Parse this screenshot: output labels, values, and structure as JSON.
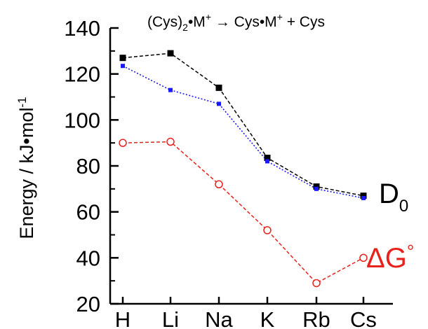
{
  "chart_data": {
    "type": "line",
    "title": "(Cys)2•M+ → Cys•M+ + Cys",
    "ylabel": "Energy / kJ•mol-1",
    "xlabel": "",
    "categories": [
      "H",
      "Li",
      "Na",
      "K",
      "Rb",
      "Cs"
    ],
    "ylim": [
      20,
      140
    ],
    "yticks": [
      20,
      40,
      60,
      80,
      100,
      120,
      140
    ],
    "series": [
      {
        "name": "D0",
        "color": "#000000",
        "marker": "filled-square",
        "line": "dashed",
        "values": [
          127,
          129,
          114,
          83.5,
          71,
          67
        ]
      },
      {
        "color": "#1a1aff",
        "marker": "small-filled-square",
        "line": "dotted",
        "values": [
          123.5,
          113,
          107,
          82,
          70,
          66
        ]
      },
      {
        "name": "ΔG°",
        "color": "#e8211d",
        "marker": "open-circle",
        "line": "dashed",
        "values": [
          90,
          90.5,
          72,
          52,
          29,
          40
        ]
      }
    ]
  }
}
